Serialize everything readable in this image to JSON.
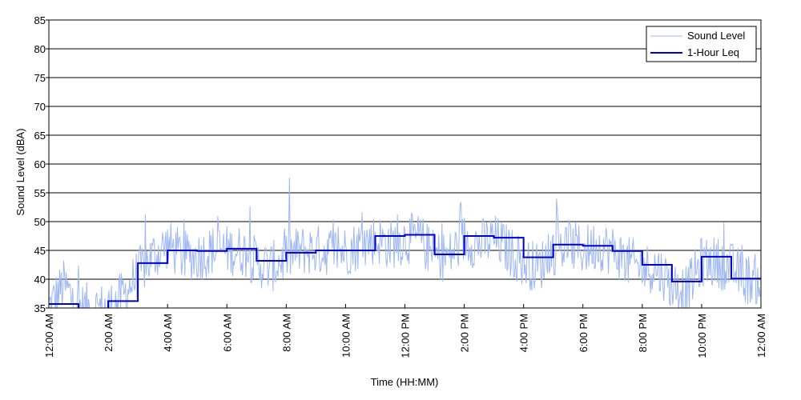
{
  "chart_data": {
    "type": "line",
    "xlabel": "Time (HH:MM)",
    "ylabel": "Sound Level (dBA)",
    "xlim": [
      0,
      24
    ],
    "ylim": [
      35,
      85
    ],
    "yticks": [
      35,
      40,
      45,
      50,
      55,
      60,
      65,
      70,
      75,
      80,
      85
    ],
    "xticks": [
      {
        "hour": 0,
        "label": "12:00 AM"
      },
      {
        "hour": 2,
        "label": "2:00 AM"
      },
      {
        "hour": 4,
        "label": "4:00 AM"
      },
      {
        "hour": 6,
        "label": "6:00 AM"
      },
      {
        "hour": 8,
        "label": "8:00 AM"
      },
      {
        "hour": 10,
        "label": "10:00 AM"
      },
      {
        "hour": 12,
        "label": "12:00 PM"
      },
      {
        "hour": 14,
        "label": "2:00 PM"
      },
      {
        "hour": 16,
        "label": "4:00 PM"
      },
      {
        "hour": 18,
        "label": "6:00 PM"
      },
      {
        "hour": 20,
        "label": "8:00 PM"
      },
      {
        "hour": 22,
        "label": "10:00 PM"
      },
      {
        "hour": 24,
        "label": "12:00 AM"
      }
    ],
    "grid": "horizontal",
    "legend_position": "top-right",
    "colors": {
      "sound_level": "#9db6f5",
      "leq": "#0000cc",
      "grid": "#000000"
    },
    "series": [
      {
        "name": "Sound Level",
        "hours": [
          0.0,
          0.5,
          1.0,
          1.5,
          2.0,
          2.5,
          3.0,
          3.5,
          4.0,
          4.5,
          5.0,
          5.5,
          6.0,
          6.5,
          7.0,
          7.5,
          8.0,
          8.5,
          9.0,
          9.5,
          10.0,
          10.5,
          11.0,
          11.5,
          12.0,
          12.5,
          13.0,
          13.5,
          14.0,
          14.5,
          15.0,
          15.5,
          16.0,
          16.5,
          17.0,
          17.5,
          18.0,
          18.5,
          19.0,
          19.5,
          20.0,
          20.5,
          21.0,
          21.5,
          22.0,
          22.5,
          23.0,
          23.5,
          24.0
        ],
        "values": [
          35,
          39,
          35,
          35,
          35,
          37,
          41,
          44,
          46,
          44,
          44,
          45,
          45,
          45,
          43,
          42,
          44,
          45,
          45,
          45,
          45,
          46,
          47,
          46,
          47,
          47,
          44,
          44,
          47,
          46,
          47,
          45,
          43,
          42,
          45,
          46,
          45,
          46,
          45,
          43,
          42,
          42,
          39,
          38,
          43,
          43,
          42,
          40,
          40
        ]
      },
      {
        "name": "1-Hour Leq",
        "hours": [
          0,
          1,
          2,
          3,
          4,
          5,
          6,
          7,
          8,
          9,
          10,
          11,
          12,
          13,
          14,
          15,
          16,
          17,
          18,
          19,
          20,
          21,
          22,
          23,
          24
        ],
        "values": [
          35.7,
          34.7,
          36.2,
          42.8,
          45.0,
          44.9,
          45.3,
          43.2,
          44.6,
          45.0,
          45.0,
          47.5,
          47.7,
          44.3,
          47.5,
          47.2,
          43.8,
          46.0,
          45.8,
          44.9,
          42.5,
          39.6,
          43.9,
          40.1,
          40.1
        ]
      }
    ]
  }
}
